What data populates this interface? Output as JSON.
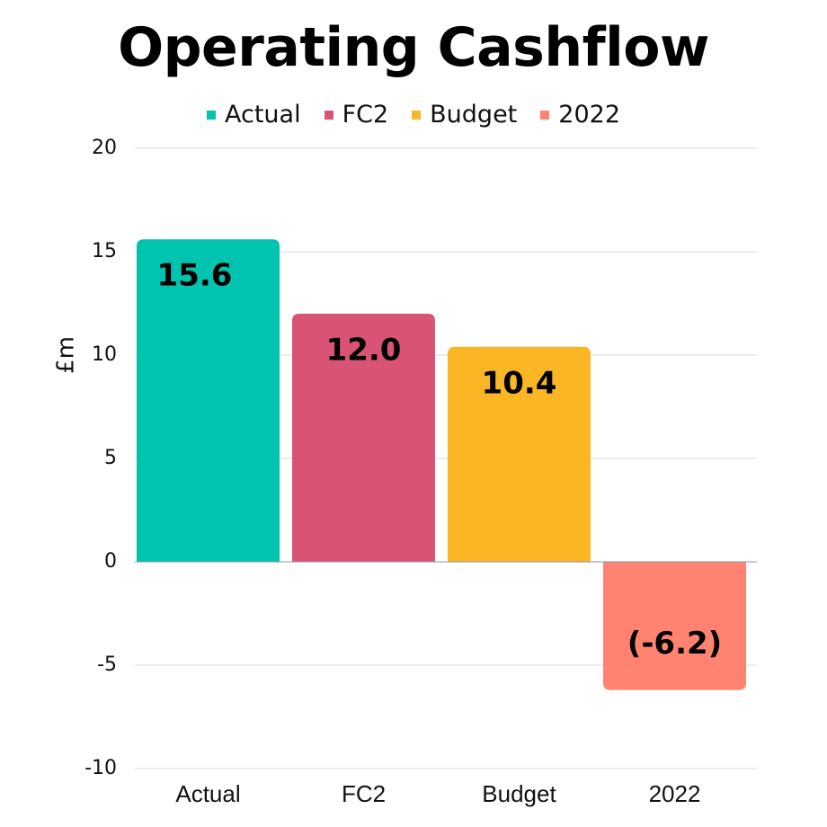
{
  "chart_data": {
    "type": "bar",
    "title": "Operating Cashflow",
    "xlabel": "",
    "ylabel": "£m",
    "categories": [
      "Actual",
      "FC2",
      "Budget",
      "2022"
    ],
    "values": [
      15.6,
      12.0,
      10.4,
      -6.2
    ],
    "data_labels": [
      "15.6",
      "12.0",
      "10.4",
      "(-6.2)"
    ],
    "colors": [
      "#00C4B0",
      "#D95474",
      "#FBB625",
      "#FF8370"
    ],
    "legend": [
      "Actual",
      "FC2",
      "Budget",
      "2022"
    ],
    "legend_position": "top-center",
    "ylim": [
      -10,
      20
    ],
    "yticks": [
      -10,
      -5,
      0,
      5,
      10,
      15,
      20
    ],
    "ytick_labels": [
      "-10",
      "-5",
      "0",
      "5",
      "10",
      "15",
      "20"
    ],
    "grid": true
  }
}
